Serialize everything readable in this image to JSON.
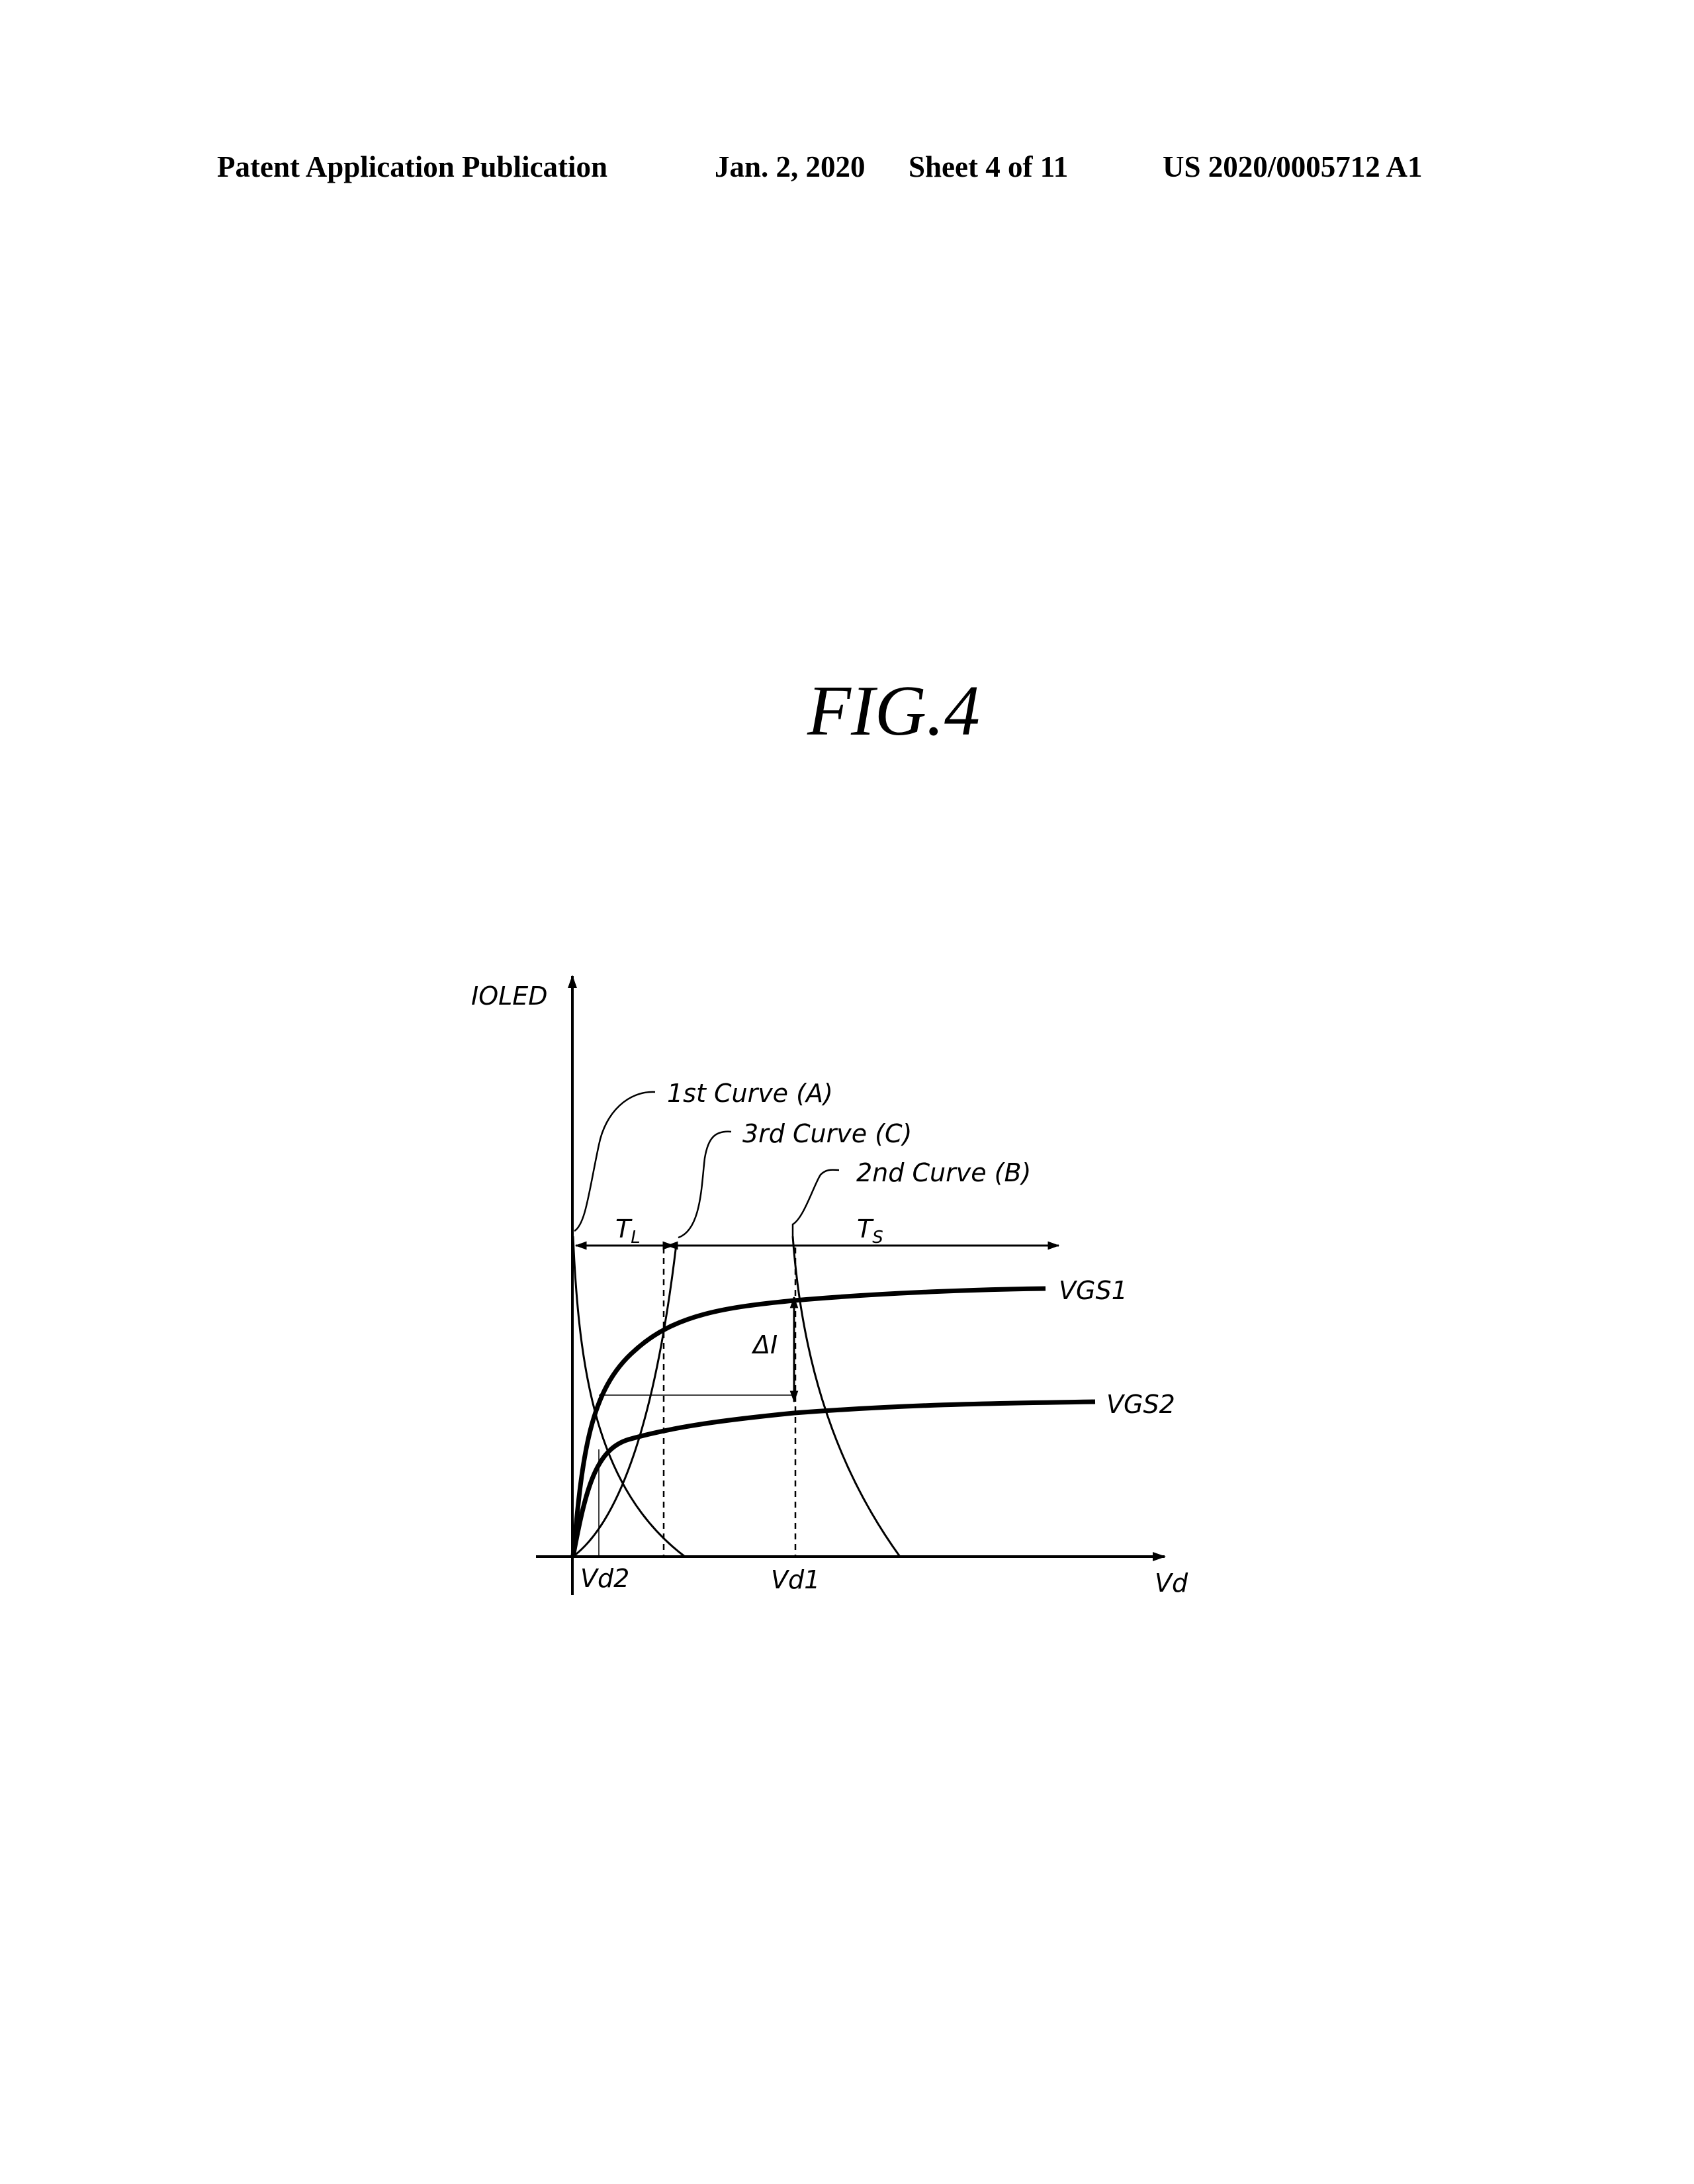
{
  "header": {
    "left": "Patent Application Publication",
    "date": "Jan. 2, 2020",
    "sheet": "Sheet 4 of 11",
    "number": "US 2020/0005712 A1"
  },
  "figure": {
    "title": "FIG.4",
    "y_axis_label": "IOLED",
    "x_axis_label": "Vd",
    "callouts": {
      "curve_a": "1st Curve (A)",
      "curve_c": "3rd Curve (C)",
      "curve_b": "2nd Curve (B)"
    },
    "interval_long": {
      "base": "T",
      "sub": "L"
    },
    "interval_short": {
      "base": "T",
      "sub": "S"
    },
    "delta_label": "ΔI",
    "curve_vgs1": "VGS1",
    "curve_vgs2": "VGS2",
    "tick_vd2": "Vd2",
    "tick_vd1": "Vd1"
  }
}
